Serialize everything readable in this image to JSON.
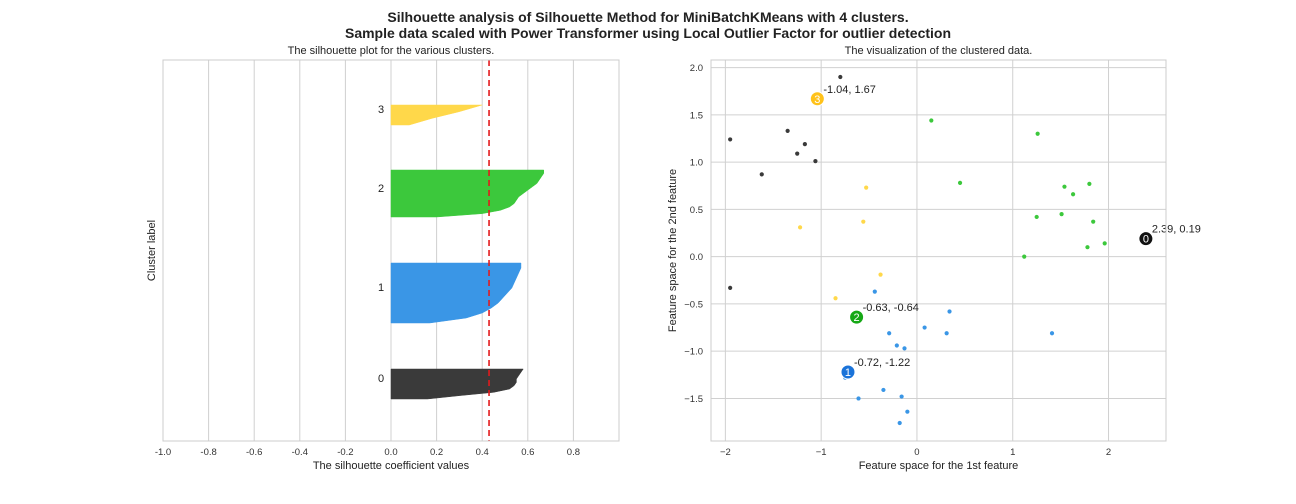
{
  "suptitle": {
    "line1": "Silhouette analysis of Silhouette Method for MiniBatchKMeans with 4 clusters.",
    "line2": "Sample data scaled with Power Transformer using Local Outlier Factor for outlier detection"
  },
  "colors": {
    "cluster_0": "#3a3a3a",
    "cluster_1": "#3a96e6",
    "cluster_2": "#3cc83c",
    "cluster_3": "#ffd84a",
    "center_0": "#111111",
    "center_1": "#1a73d9",
    "center_2": "#16a816",
    "center_3": "#ffc21a",
    "average_line": "#e31a1c",
    "grid": "#d0d0d0",
    "frame": "#cccccc"
  },
  "chart_data": [
    {
      "type": "area",
      "title": "The silhouette plot for the various clusters.",
      "xlabel": "The silhouette coefficient values",
      "ylabel": "Cluster label",
      "xlim": [
        -1.0,
        1.0
      ],
      "xticks": [
        "-1.0",
        "-0.8",
        "-0.6",
        "-0.4",
        "-0.2",
        "0.0",
        "0.2",
        "0.4",
        "0.6",
        "0.8"
      ],
      "grid": true,
      "average_silhouette": 0.43,
      "clusters": [
        {
          "label": "0",
          "values": [
            0.58,
            0.57,
            0.56,
            0.55,
            0.55,
            0.54,
            0.52,
            0.45,
            0.3,
            0.16
          ]
        },
        {
          "label": "1",
          "values": [
            0.57,
            0.57,
            0.56,
            0.55,
            0.54,
            0.53,
            0.51,
            0.49,
            0.47,
            0.44,
            0.4,
            0.33,
            0.17
          ]
        },
        {
          "label": "2",
          "values": [
            0.67,
            0.67,
            0.66,
            0.65,
            0.64,
            0.62,
            0.6,
            0.58,
            0.56,
            0.55,
            0.54,
            0.52,
            0.48,
            0.4,
            0.2
          ]
        },
        {
          "label": "3",
          "values": [
            0.4,
            0.3,
            0.18,
            0.08
          ]
        }
      ]
    },
    {
      "type": "scatter",
      "title": "The visualization of the clustered data.",
      "xlabel": "Feature space for the 1st feature",
      "ylabel": "Feature space for the 2nd feature",
      "xlim": [
        -2.15,
        2.6
      ],
      "ylim": [
        -1.95,
        2.08
      ],
      "xticks": [
        "−2",
        "−1",
        "0",
        "1",
        "2"
      ],
      "yticks": [
        "−1.5",
        "−1.0",
        "−0.5",
        "0.0",
        "0.5",
        "1.0",
        "1.5",
        "2.0"
      ],
      "grid": true,
      "series": [
        {
          "cluster": 0,
          "points": [
            [
              -1.95,
              1.24
            ],
            [
              -1.95,
              -0.33
            ],
            [
              -1.62,
              0.87
            ],
            [
              -1.35,
              1.33
            ],
            [
              -1.25,
              1.09
            ],
            [
              -1.17,
              1.19
            ],
            [
              -1.06,
              1.01
            ],
            [
              -0.8,
              1.9
            ]
          ]
        },
        {
          "cluster": 1,
          "points": [
            [
              -0.44,
              -0.37
            ],
            [
              0.34,
              -0.58
            ],
            [
              0.08,
              -0.75
            ],
            [
              -0.29,
              -0.81
            ],
            [
              0.31,
              -0.81
            ],
            [
              -0.21,
              -0.94
            ],
            [
              -0.13,
              -0.97
            ],
            [
              1.41,
              -0.81
            ],
            [
              -0.75,
              -1.28
            ],
            [
              -0.35,
              -1.41
            ],
            [
              -0.16,
              -1.48
            ],
            [
              -0.61,
              -1.5
            ],
            [
              -0.1,
              -1.64
            ],
            [
              -0.18,
              -1.76
            ]
          ]
        },
        {
          "cluster": 2,
          "points": [
            [
              0.15,
              1.44
            ],
            [
              1.26,
              1.3
            ],
            [
              0.45,
              0.78
            ],
            [
              1.8,
              0.77
            ],
            [
              1.54,
              0.74
            ],
            [
              1.63,
              0.66
            ],
            [
              1.25,
              0.42
            ],
            [
              1.51,
              0.45
            ],
            [
              1.84,
              0.37
            ],
            [
              1.96,
              0.14
            ],
            [
              1.78,
              0.1
            ],
            [
              1.12,
              0.0
            ]
          ]
        },
        {
          "cluster": 3,
          "points": [
            [
              -0.53,
              0.73
            ],
            [
              -0.56,
              0.37
            ],
            [
              -1.22,
              0.31
            ],
            [
              -0.38,
              -0.19
            ],
            [
              -0.85,
              -0.44
            ]
          ]
        }
      ],
      "centers": [
        {
          "label": "0",
          "x": 2.39,
          "y": 0.19,
          "text": "2.39, 0.19"
        },
        {
          "label": "1",
          "x": -0.72,
          "y": -1.22,
          "text": "-0.72, -1.22"
        },
        {
          "label": "2",
          "x": -0.63,
          "y": -0.64,
          "text": "-0.63, -0.64"
        },
        {
          "label": "3",
          "x": -1.04,
          "y": 1.67,
          "text": "-1.04, 1.67"
        }
      ]
    }
  ]
}
